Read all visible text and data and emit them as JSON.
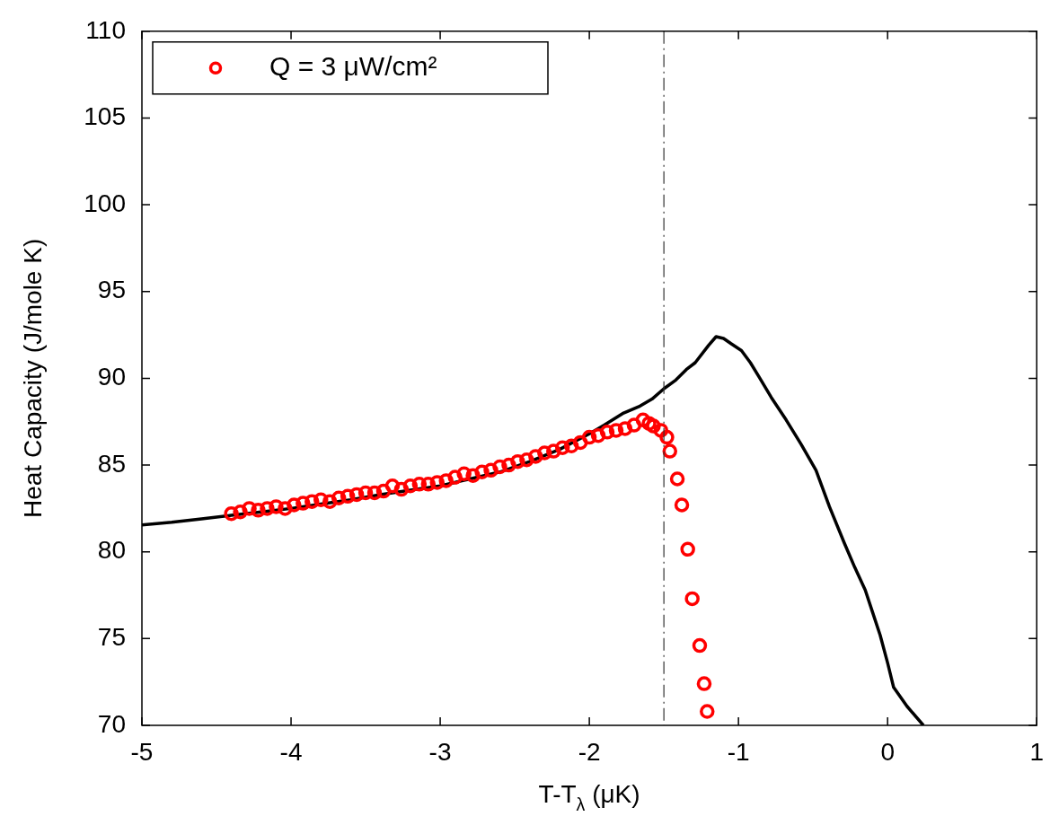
{
  "chart_data": {
    "type": "line",
    "xlabel": "T-T$_{λ}$ (μK)",
    "ylabel": "Heat Capacity (J/mole K)",
    "xlim": [
      -5,
      1
    ],
    "xticks": [
      -5,
      -4,
      -3,
      -2,
      -1,
      0,
      1
    ],
    "ylim": [
      70,
      110
    ],
    "yticks": [
      70,
      75,
      80,
      85,
      90,
      95,
      100,
      105,
      110
    ],
    "grid": false,
    "legend": "top left",
    "ref_lines": [
      {
        "axis": "x",
        "value": -1.5,
        "color": "#333333",
        "line_style": "dashed"
      }
    ],
    "series": [
      {
        "color": "#000000",
        "line_style": "solid",
        "marker": "none",
        "x": [
          -5,
          -4.8,
          -4.6,
          -4.4,
          -4.2,
          -4.0,
          -3.8,
          -3.6,
          -3.4,
          -3.2,
          -3.0,
          -2.8,
          -2.6,
          -2.4,
          -2.2,
          -2.0,
          -1.9,
          -1.77,
          -1.66,
          -1.58,
          -1.5,
          -1.42,
          -1.35,
          -1.29,
          -1.2,
          -1.15,
          -1.1,
          -1.05,
          -0.98,
          -0.92,
          -0.86,
          -0.78,
          -0.68,
          -0.58,
          -0.48,
          -0.39,
          -0.29,
          -0.22,
          -0.15,
          -0.1,
          -0.05,
          0.0,
          0.04,
          0.13,
          0.24
        ],
        "values": [
          81.55,
          81.7,
          81.9,
          82.1,
          82.3,
          82.5,
          82.75,
          83.0,
          83.3,
          83.55,
          83.8,
          84.2,
          84.6,
          85.2,
          85.9,
          86.8,
          87.3,
          88.0,
          88.4,
          88.8,
          89.4,
          89.9,
          90.5,
          90.9,
          91.9,
          92.4,
          92.3,
          92.0,
          91.6,
          90.9,
          90.05,
          88.9,
          87.6,
          86.2,
          84.7,
          82.6,
          80.5,
          79.1,
          77.8,
          76.5,
          75.2,
          73.6,
          72.2,
          71.1,
          70.0
        ]
      },
      {
        "type": "scatter",
        "name": "Q = 3 μW/cm²",
        "color": "#ff0000",
        "marker": "circle",
        "x": [
          -4.4,
          -4.34,
          -4.28,
          -4.22,
          -4.16,
          -4.1,
          -4.04,
          -3.98,
          -3.92,
          -3.86,
          -3.8,
          -3.74,
          -3.68,
          -3.62,
          -3.56,
          -3.5,
          -3.44,
          -3.38,
          -3.32,
          -3.26,
          -3.2,
          -3.14,
          -3.08,
          -3.02,
          -2.96,
          -2.9,
          -2.84,
          -2.78,
          -2.72,
          -2.66,
          -2.6,
          -2.54,
          -2.48,
          -2.42,
          -2.36,
          -2.3,
          -2.24,
          -2.18,
          -2.12,
          -2.06,
          -2.0,
          -1.94,
          -1.88,
          -1.82,
          -1.76,
          -1.7,
          -1.64,
          -1.6,
          -1.57,
          -1.52,
          -1.48,
          -1.46,
          -1.41,
          -1.38,
          -1.34,
          -1.31,
          -1.26,
          -1.23,
          -1.21
        ],
        "values": [
          82.2,
          82.3,
          82.5,
          82.4,
          82.5,
          82.6,
          82.5,
          82.7,
          82.8,
          82.9,
          83.0,
          82.9,
          83.1,
          83.2,
          83.3,
          83.4,
          83.4,
          83.5,
          83.8,
          83.6,
          83.8,
          83.9,
          83.9,
          84.0,
          84.1,
          84.3,
          84.5,
          84.4,
          84.6,
          84.7,
          84.9,
          85.0,
          85.2,
          85.3,
          85.5,
          85.7,
          85.8,
          86.0,
          86.1,
          86.3,
          86.6,
          86.7,
          86.9,
          87.0,
          87.1,
          87.3,
          87.6,
          87.4,
          87.25,
          87.0,
          86.6,
          85.8,
          84.2,
          82.7,
          80.15,
          77.3,
          74.6,
          72.4,
          70.8
        ]
      }
    ]
  }
}
